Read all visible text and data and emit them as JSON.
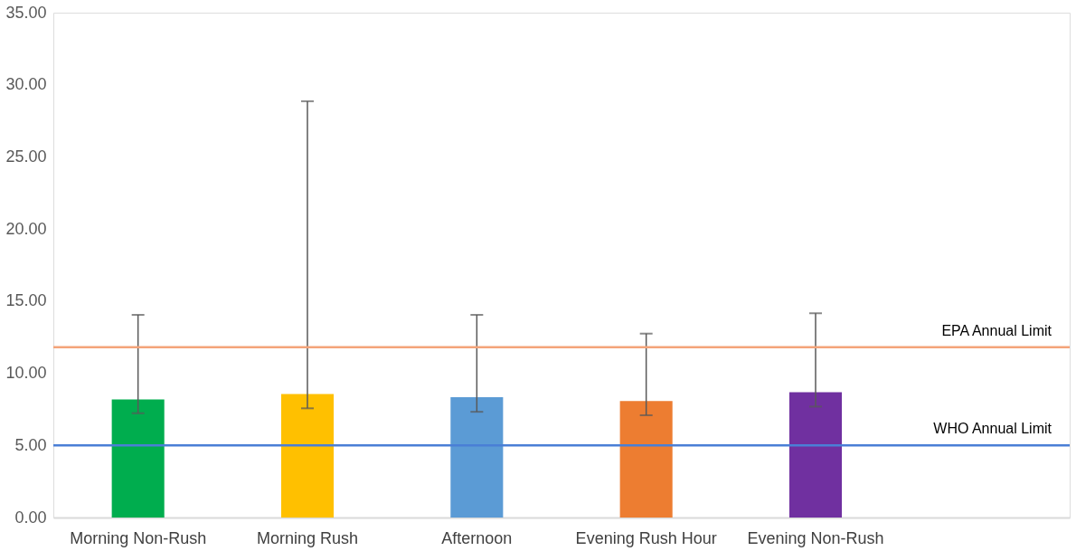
{
  "chart_data": {
    "type": "bar",
    "categories": [
      "Morning Non-Rush",
      "Morning Rush",
      "Afternoon",
      "Evening Rush Hour",
      "Evening Non-Rush",
      null
    ],
    "values": [
      8.19,
      8.56,
      8.34,
      8.08,
      8.68,
      null
    ],
    "colors": [
      "#00ad4e",
      "#ffc000",
      "#5b9bd5",
      "#ed7d31",
      "#7030a0",
      "#ffffff"
    ],
    "errors": [
      [
        7.23,
        14.05
      ],
      [
        7.57,
        28.86
      ],
      [
        7.33,
        14.05
      ],
      [
        7.09,
        12.75
      ],
      [
        7.69,
        14.16
      ],
      null
    ],
    "ylim": [
      0,
      35
    ],
    "yticks": [
      {
        "value": 0,
        "label": "0.00"
      },
      {
        "value": 5,
        "label": "5.00"
      },
      {
        "value": 10,
        "label": "10.00"
      },
      {
        "value": 15,
        "label": "15.00"
      },
      {
        "value": 20,
        "label": "20.00"
      },
      {
        "value": 25,
        "label": "25.00"
      },
      {
        "value": 30,
        "label": "30.00"
      },
      {
        "value": 35,
        "label": "35.00"
      }
    ],
    "ref_lines": [
      {
        "axis": "y",
        "value": 11.8,
        "label": "EPA Annual Limit",
        "color": "#f4a47a"
      },
      {
        "axis": "y",
        "value": 5,
        "label": "WHO Annual Limit",
        "color": "#4a7fd6"
      }
    ],
    "grid": false
  }
}
